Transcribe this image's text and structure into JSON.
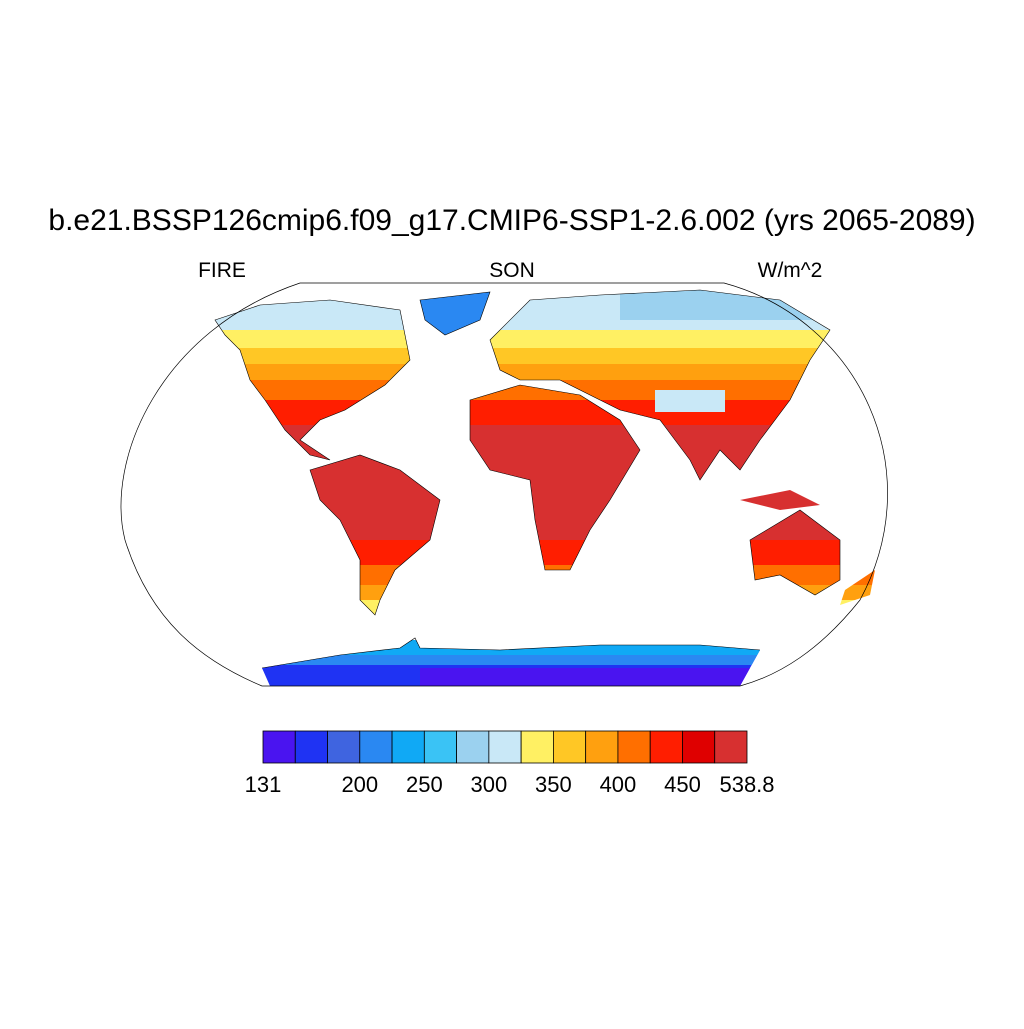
{
  "title": "b.e21.BSSP126cmip6.f09_g17.CMIP6-SSP1-2.6.002 (yrs 2065-2089)",
  "left_string": "FIRE",
  "center_string": "SON",
  "right_string": "W/m^2",
  "colorbar": {
    "colors": [
      "#4a14f0",
      "#1f33f3",
      "#3f64e0",
      "#2a88f2",
      "#10a9f5",
      "#3ac3f5",
      "#9bd1ef",
      "#c9e8f7",
      "#fff063",
      "#ffc725",
      "#ffa00f",
      "#ff6f00",
      "#ff1e00",
      "#df0000",
      "#d73030"
    ],
    "levels": [
      131,
      null,
      null,
      200,
      null,
      250,
      null,
      300,
      null,
      350,
      null,
      400,
      null,
      450,
      null,
      538.8
    ]
  }
}
